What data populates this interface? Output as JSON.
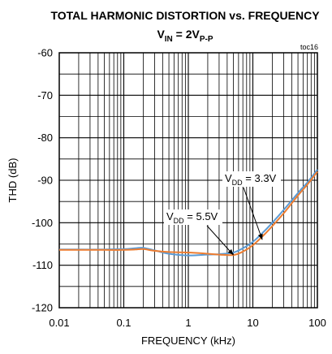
{
  "chart_data": {
    "type": "line",
    "title_main": "TOTAL HARMONIC DISTORTION vs. FREQUENCY",
    "title_sub": {
      "base": "V",
      "base_sub": "IN",
      "eq": " = 2V",
      "eq_sub": "P-P"
    },
    "tag": "toc16",
    "xlabel": "FREQUENCY (kHz)",
    "ylabel": "THD (dB)",
    "x_scale": "log",
    "xlim": [
      0.01,
      100
    ],
    "ylim": [
      -120,
      -60
    ],
    "x_ticks": [
      0.01,
      0.1,
      1,
      10,
      100
    ],
    "x_tick_labels": [
      "0.01",
      "0.1",
      "1",
      "10",
      "100"
    ],
    "y_ticks": [
      -120,
      -110,
      -100,
      -90,
      -80,
      -70,
      -60
    ],
    "y_tick_labels": [
      "-120",
      "-110",
      "-100",
      "-90",
      "-80",
      "-70",
      "-60"
    ],
    "grid": true,
    "series": [
      {
        "name": "VDD = 3.3V",
        "color": "#5b9bd5",
        "x": [
          0.01,
          0.02,
          0.05,
          0.1,
          0.15,
          0.2,
          0.3,
          0.5,
          1,
          2,
          3,
          5,
          7,
          10,
          15,
          20,
          30,
          50,
          70,
          100
        ],
        "y": [
          -106.3,
          -106.3,
          -106.3,
          -106.2,
          -106.0,
          -105.9,
          -106.5,
          -107.3,
          -107.7,
          -107.5,
          -107.4,
          -107.0,
          -106.0,
          -104.5,
          -102.0,
          -100.0,
          -97.0,
          -93.0,
          -90.5,
          -87.5
        ]
      },
      {
        "name": "VDD = 5.5V",
        "color": "#ed7d31",
        "x": [
          0.01,
          0.02,
          0.05,
          0.1,
          0.15,
          0.2,
          0.3,
          0.5,
          1,
          2,
          3,
          5,
          7,
          10,
          15,
          20,
          30,
          50,
          70,
          100
        ],
        "y": [
          -106.4,
          -106.4,
          -106.4,
          -106.4,
          -106.3,
          -106.2,
          -106.6,
          -106.9,
          -107.0,
          -107.3,
          -107.5,
          -107.6,
          -106.8,
          -105.3,
          -102.8,
          -100.8,
          -97.8,
          -93.6,
          -91.0,
          -88.0
        ]
      }
    ],
    "annotations": [
      {
        "label_base": "V",
        "label_sub": "DD",
        "label_rest": " = 3.3V",
        "series": "VDD = 3.3V"
      },
      {
        "label_base": "V",
        "label_sub": "DD",
        "label_rest": " = 5.5V",
        "series": "VDD = 5.5V"
      }
    ]
  }
}
